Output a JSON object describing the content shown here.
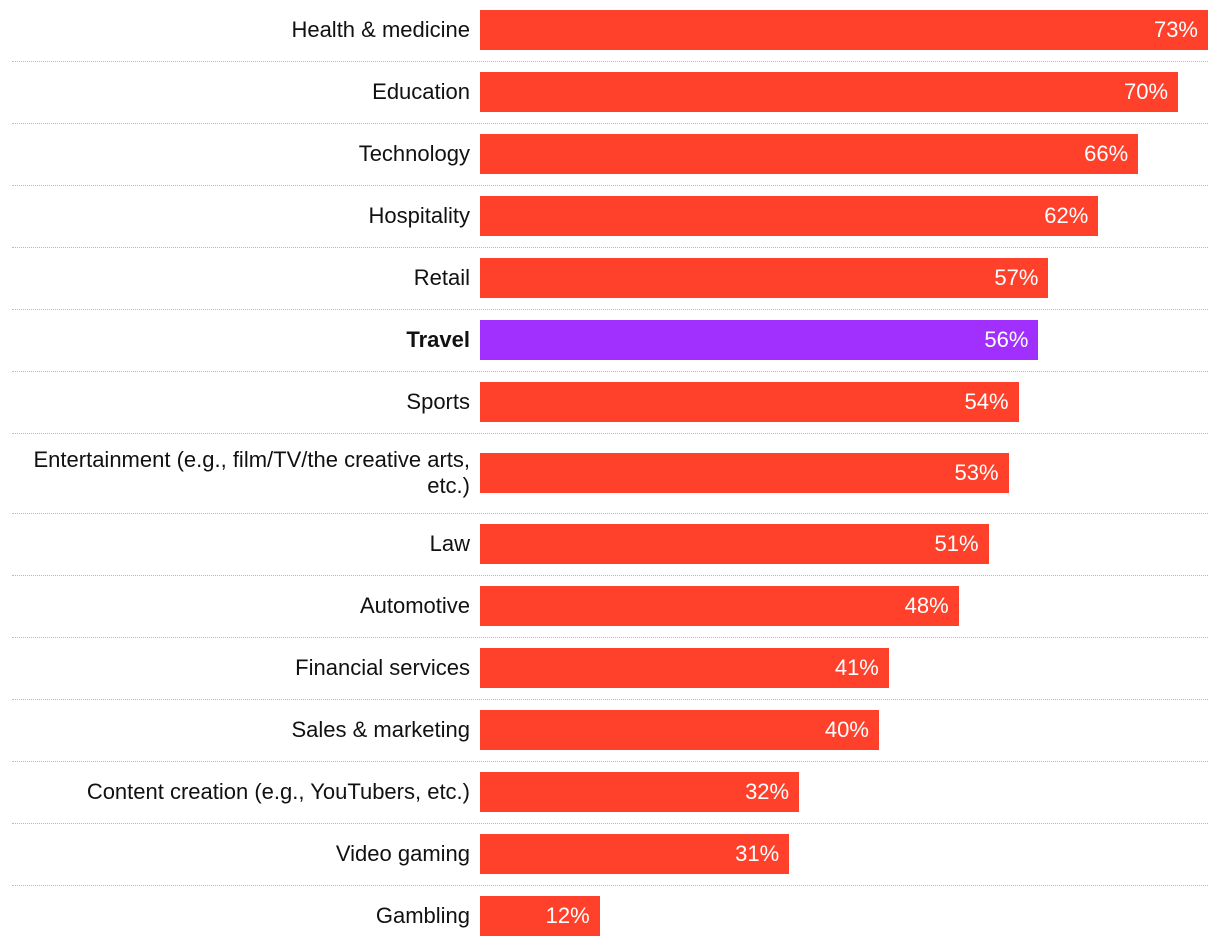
{
  "chart_data": {
    "type": "bar",
    "orientation": "horizontal",
    "categories": [
      "Health & medicine",
      "Education",
      "Technology",
      "Hospitality",
      "Retail",
      "Travel",
      "Sports",
      "Entertainment (e.g., film/TV/the creative arts, etc.)",
      "Law",
      "Automotive",
      "Financial services",
      "Sales & marketing",
      "Content creation (e.g., YouTubers, etc.)",
      "Video gaming",
      "Gambling"
    ],
    "values": [
      73,
      70,
      66,
      62,
      57,
      56,
      54,
      53,
      51,
      48,
      41,
      40,
      32,
      31,
      12
    ],
    "value_labels": [
      "73%",
      "70%",
      "66%",
      "62%",
      "57%",
      "56%",
      "54%",
      "53%",
      "51%",
      "48%",
      "41%",
      "40%",
      "32%",
      "31%",
      "12%"
    ],
    "highlight_category": "Travel",
    "unit": "%",
    "xlim": [
      0,
      73
    ],
    "grid": false,
    "title": "",
    "xlabel": "",
    "ylabel": ""
  },
  "colors": {
    "bar": "#ff412c",
    "highlight": "#a130ff",
    "separator": "#b9b9b9",
    "label_text": "#111111",
    "value_text": "#ffffff"
  }
}
